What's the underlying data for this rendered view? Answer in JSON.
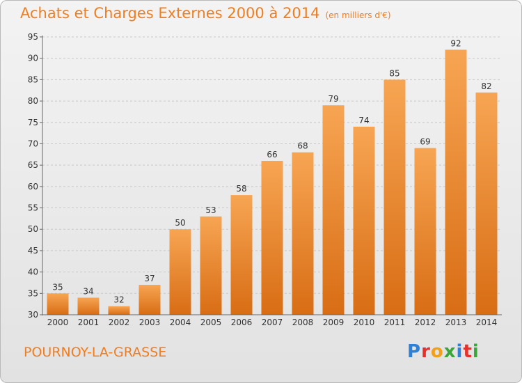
{
  "title": "Achats et Charges Externes 2000 à 2014",
  "unit": "(en milliers d'€)",
  "place": "POURNOY-LA-GRASSE",
  "brand": "Proxiti",
  "colors": {
    "bar_top": "#f7a553",
    "bar_bottom": "#d86d14",
    "accent": "#f07d20"
  },
  "chart_data": {
    "type": "bar",
    "title": "Achats et Charges Externes 2000 à 2014",
    "subtitle": "(en milliers d'€)",
    "categories": [
      "2000",
      "2001",
      "2002",
      "2003",
      "2004",
      "2005",
      "2006",
      "2007",
      "2008",
      "2009",
      "2010",
      "2011",
      "2012",
      "2013",
      "2014"
    ],
    "values": [
      35,
      34,
      32,
      37,
      50,
      53,
      58,
      66,
      68,
      79,
      74,
      85,
      69,
      92,
      82
    ],
    "ylim": [
      30,
      95
    ],
    "yticks": [
      30,
      35,
      40,
      45,
      50,
      55,
      60,
      65,
      70,
      75,
      80,
      85,
      90,
      95
    ],
    "grid": true,
    "data_labels": true
  }
}
